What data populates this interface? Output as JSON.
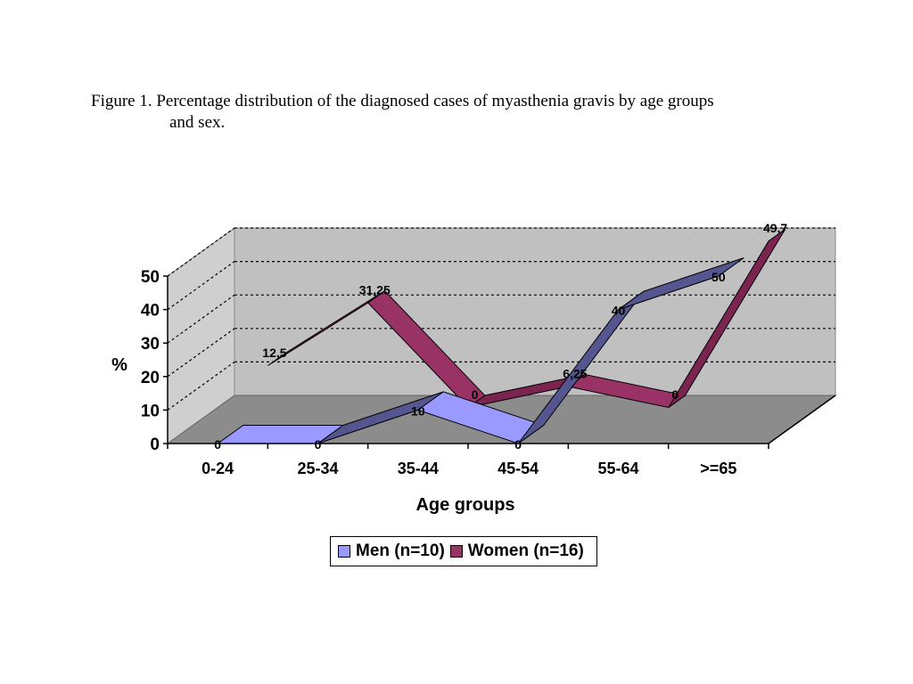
{
  "caption": {
    "line1": "Figure 1. Percentage distribution of the diagnosed cases of myasthenia gravis by age groups",
    "line2": "and sex."
  },
  "chart_data": {
    "type": "line",
    "style": "3d-ribbon",
    "categories": [
      "0-24",
      "25-34",
      "35-44",
      "45-54",
      "55-64",
      ">=65"
    ],
    "xlabel": "Age groups",
    "ylabel": "%",
    "ylim": [
      0,
      50
    ],
    "yticks": [
      0,
      10,
      20,
      30,
      40,
      50
    ],
    "grid": "dotted-horizontal",
    "legend_position": "bottom",
    "series": [
      {
        "name": "Men (n=10)",
        "values": [
          0,
          0,
          10,
          0,
          40,
          50
        ],
        "labels": [
          "0",
          "0",
          "10",
          "0",
          "40",
          "50"
        ],
        "color": "#9999ff"
      },
      {
        "name": "Women (n=16)",
        "values": [
          12.5,
          31.25,
          0,
          6.25,
          0,
          49.7
        ],
        "labels": [
          "12,5",
          "31,25",
          "0",
          "6,25",
          "0",
          "49,7"
        ],
        "color": "#993366"
      }
    ]
  }
}
